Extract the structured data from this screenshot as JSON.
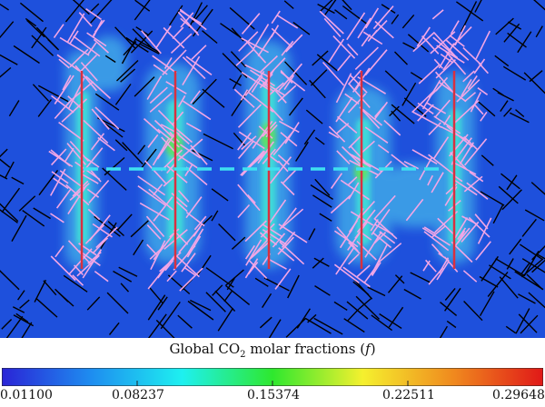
{
  "legend": {
    "title_prefix": "Global CO",
    "title_sub": "2",
    "title_suffix": " molar fractions (",
    "title_var": "f",
    "title_close": ")",
    "ticks": [
      "0.01100",
      "0.08237",
      "0.15374",
      "0.22511",
      "0.29648"
    ],
    "colormap": [
      "#2a24d6",
      "#1e8ef0",
      "#1ef0f0",
      "#2ee82e",
      "#f5f02e",
      "#f08a1e",
      "#e01818"
    ]
  },
  "colors": {
    "background": "#1e50dc",
    "fracture_inactive": "#000000",
    "fracture_active": "#f2a6e6",
    "well": "#d83040",
    "injection_line": "#3ee0f0"
  }
}
